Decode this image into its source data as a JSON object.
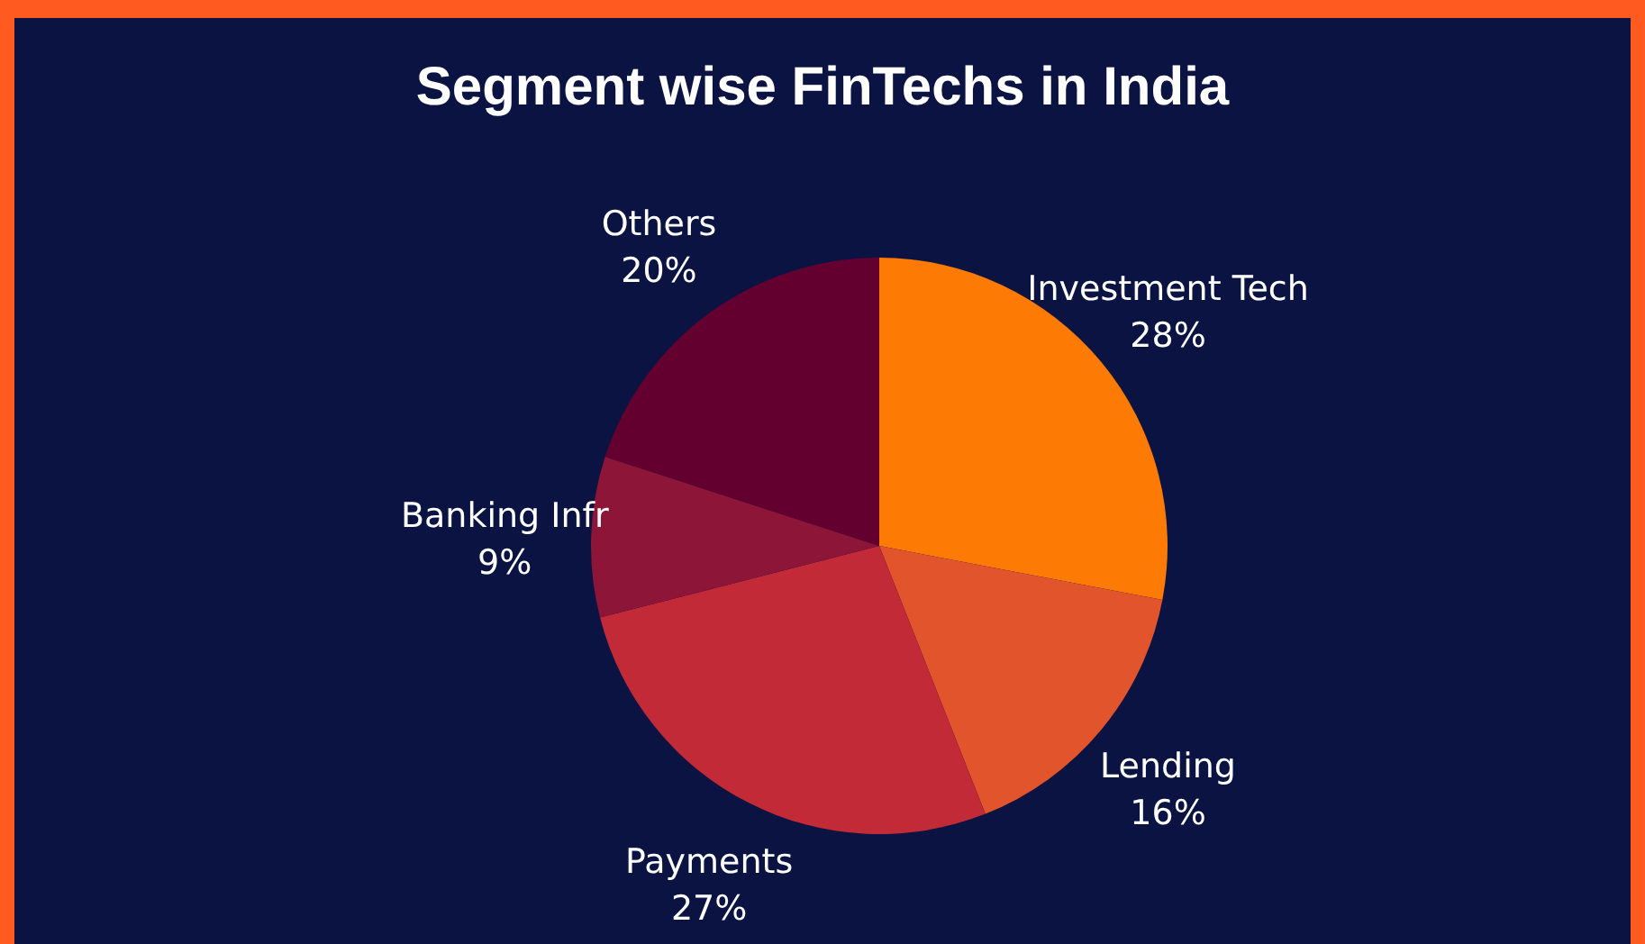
{
  "chart_data": {
    "type": "pie",
    "title": "Segment wise FinTechs in India",
    "categories": [
      "Investment Tech",
      "Lending",
      "Payments",
      "Banking Infr",
      "Others"
    ],
    "values": [
      28,
      16,
      27,
      9,
      20
    ],
    "value_labels": [
      "28%",
      "16%",
      "27%",
      "9%",
      "20%"
    ],
    "colors": [
      "#fd7b04",
      "#e2542c",
      "#c12a36",
      "#8d1537",
      "#640030"
    ]
  }
}
